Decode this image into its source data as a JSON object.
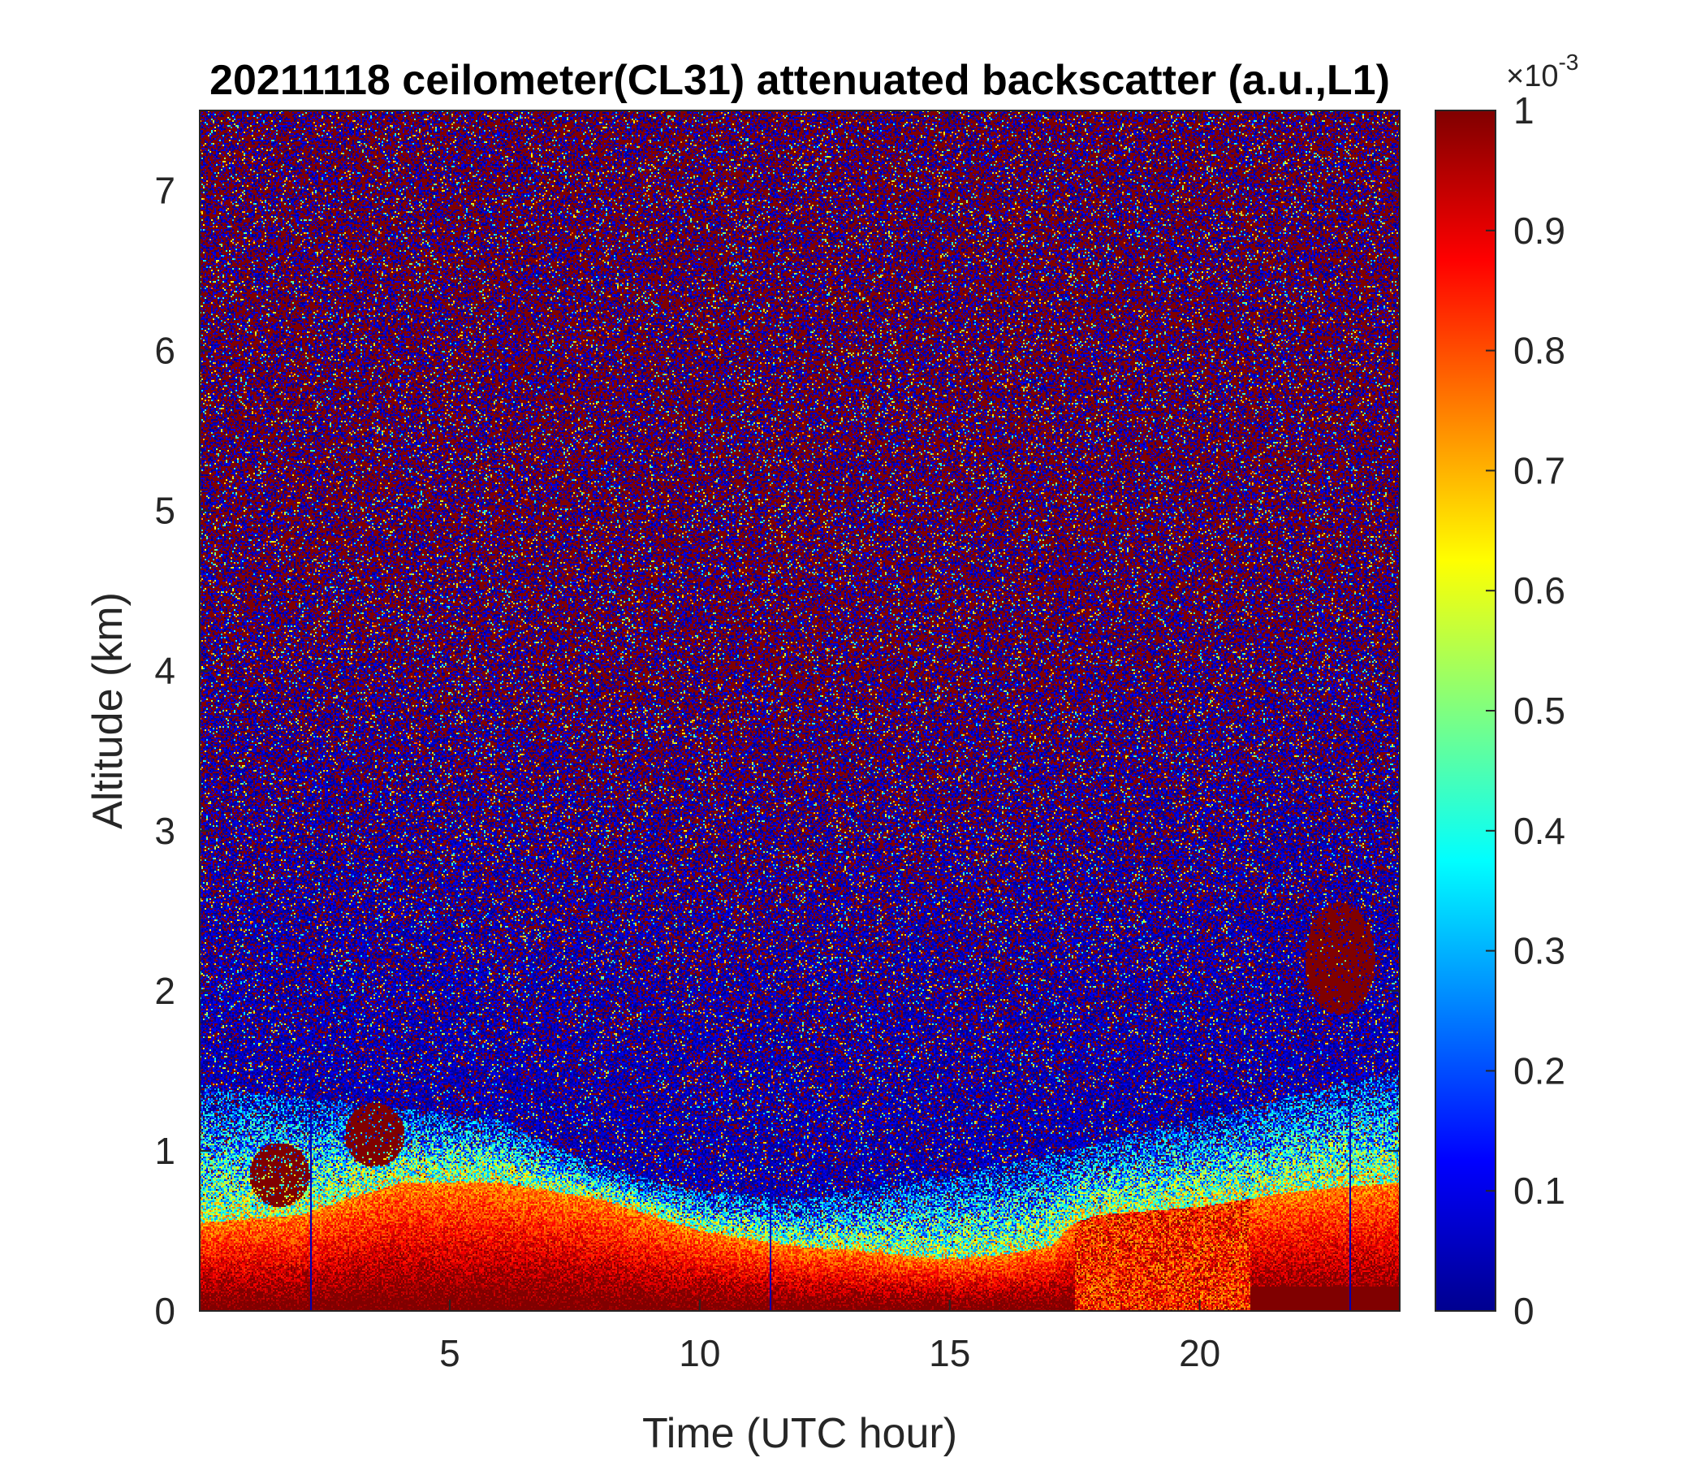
{
  "chart_data": {
    "type": "heatmap",
    "title": "20211118 ceilometer(CL31) attenuated backscatter (a.u.,L1)",
    "xlabel": "Time (UTC hour)",
    "ylabel": "Altitude (km)",
    "xlim": [
      0,
      24
    ],
    "ylim": [
      0,
      7.5
    ],
    "x_ticks": [
      5,
      10,
      15,
      20
    ],
    "y_ticks": [
      0,
      1,
      2,
      3,
      4,
      5,
      6,
      7
    ],
    "colorbar": {
      "colormap": "jet",
      "clim": [
        0,
        0.001
      ],
      "multiplier_label": "×10",
      "multiplier_exponent": "-3",
      "ticks": [
        0,
        0.1,
        0.2,
        0.3,
        0.4,
        0.5,
        0.6,
        0.7,
        0.8,
        0.9,
        1
      ],
      "tick_labels": [
        "0",
        "0.1",
        "0.2",
        "0.3",
        "0.4",
        "0.5",
        "0.6",
        "0.7",
        "0.8",
        "0.9",
        "1"
      ]
    },
    "boundary_layer_top_km": {
      "hour": [
        0,
        2,
        4,
        6,
        8,
        10,
        11,
        12,
        13,
        14,
        15,
        16,
        17,
        17.5,
        18,
        20,
        22,
        24
      ],
      "altitude": [
        0.55,
        0.6,
        0.8,
        0.8,
        0.7,
        0.5,
        0.45,
        0.4,
        0.38,
        0.35,
        0.32,
        0.35,
        0.4,
        0.55,
        0.6,
        0.65,
        0.75,
        0.8
      ]
    },
    "aerosol_transition_top_km": {
      "hour": [
        0,
        3,
        6,
        8,
        10,
        12,
        14,
        16,
        18,
        20,
        22,
        24
      ],
      "altitude": [
        1.4,
        1.3,
        1.2,
        0.9,
        0.75,
        0.7,
        0.8,
        0.9,
        1.05,
        1.2,
        1.35,
        1.5
      ]
    },
    "cloud_features": [
      {
        "hour": 1.6,
        "altitude": 0.85,
        "type": "dense-layer"
      },
      {
        "hour": 3.5,
        "altitude": 1.1,
        "type": "dense-layer"
      },
      {
        "hour": 22.8,
        "altitude": 2.2,
        "type": "cloud-fragments"
      }
    ]
  }
}
